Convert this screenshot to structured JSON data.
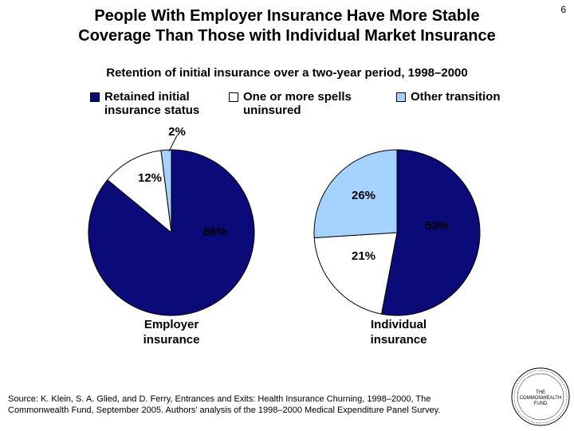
{
  "slide": {
    "page_number": "6",
    "title_line1": "People With Employer Insurance Have More Stable",
    "title_line2": "Coverage Than Those with Individual Market Insurance",
    "subtitle": "Retention of initial insurance over a two-year period, 1998–2000",
    "source_line1": "Source: K. Klein, S. A. Glied, and D. Ferry, Entrances and Exits: Health Insurance Churning, 1998–2000, The",
    "source_line2": "Commonwealth Fund, September 2005. Authors’ analysis of the 1998–2000 Medical Expenditure Panel Survey.",
    "logo_line1": "THE",
    "logo_line2": "COMMONWEALTH",
    "logo_line3": "FUND"
  },
  "colors": {
    "retained": "#0a0a78",
    "uninsured": "#ffffff",
    "other": "#a6d2ff"
  },
  "chart_data": {
    "type": "pie",
    "title": "Retention of initial insurance over a two-year period, 1998–2000",
    "legend": [
      {
        "label_line1": "Retained initial",
        "label_line2": "insurance status",
        "color": "#0a0a78"
      },
      {
        "label_line1": "One or more spells",
        "label_line2": "uninsured",
        "color": "#ffffff"
      },
      {
        "label_line1": "Other transition",
        "label_line2": "",
        "color": "#a6d2ff"
      }
    ],
    "pies": [
      {
        "name_line1": "Employer",
        "name_line2": "insurance",
        "slices": [
          {
            "category": "Retained initial insurance status",
            "value": 86,
            "label": "86%"
          },
          {
            "category": "One or more spells uninsured",
            "value": 12,
            "label": "12%"
          },
          {
            "category": "Other transition",
            "value": 2,
            "label": "2%"
          }
        ]
      },
      {
        "name_line1": "Individual",
        "name_line2": "insurance",
        "slices": [
          {
            "category": "Retained initial insurance status",
            "value": 53,
            "label": "53%"
          },
          {
            "category": "One or more spells uninsured",
            "value": 21,
            "label": "21%"
          },
          {
            "category": "Other transition",
            "value": 26,
            "label": "26%"
          }
        ]
      }
    ]
  }
}
